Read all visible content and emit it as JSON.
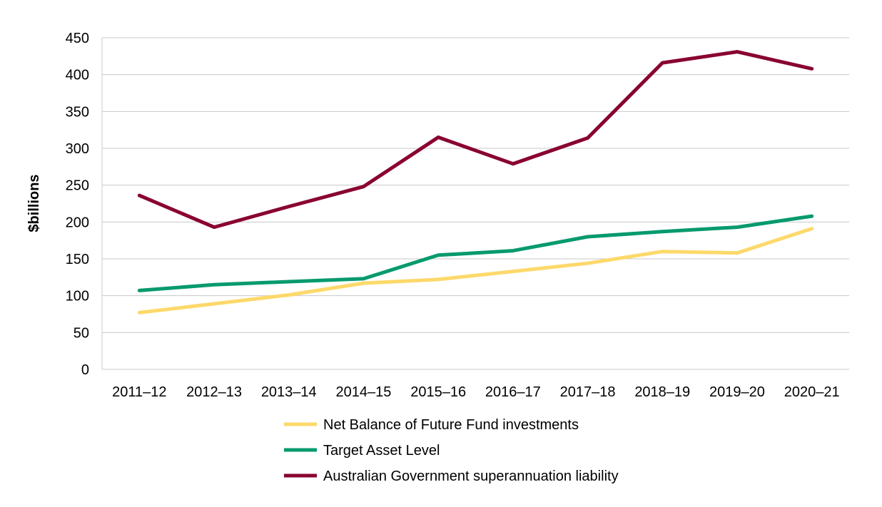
{
  "chart_data": {
    "type": "line",
    "title": "",
    "xlabel": "",
    "ylabel": "$billions",
    "ylim": [
      0,
      450
    ],
    "yticks": [
      0,
      50,
      100,
      150,
      200,
      250,
      300,
      350,
      400,
      450
    ],
    "categories": [
      "2011–12",
      "2012–13",
      "2013–14",
      "2014–15",
      "2015–16",
      "2016–17",
      "2017–18",
      "2018–19",
      "2019–20",
      "2020–21"
    ],
    "grid": true,
    "legend_position": "bottom",
    "series": [
      {
        "name": "Net Balance of Future Fund investments",
        "color": "#fdd96b",
        "values": [
          77,
          89,
          101,
          117,
          122,
          133,
          144,
          160,
          158,
          191
        ]
      },
      {
        "name": "Target Asset Level",
        "color": "#069a6e",
        "values": [
          107,
          115,
          119,
          123,
          155,
          161,
          180,
          187,
          193,
          208
        ]
      },
      {
        "name": "Australian Government superannuation liability",
        "color": "#890230",
        "values": [
          236,
          193,
          221,
          248,
          315,
          279,
          314,
          416,
          431,
          408
        ]
      }
    ]
  }
}
